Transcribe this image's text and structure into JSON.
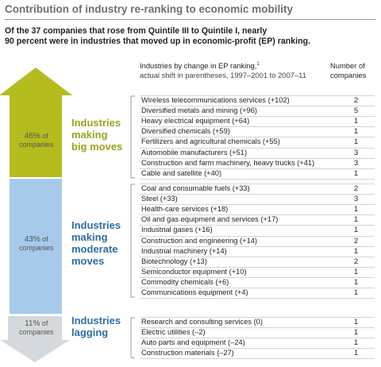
{
  "title": "Contribution of industry re-ranking to economic mobility",
  "subtitle": [
    "Of the 37 companies that rose from Quintile III to Quintile I, nearly",
    "90 percent were in industries that moved up in economic-profit (EP) ranking."
  ],
  "headers": {
    "industries": "Industries by change in EP ranking,",
    "footnote_mark": "1",
    "industries_note": "actual shift in parentheses, 1997–2001 to 2007–11",
    "count": [
      "Number of",
      "companies"
    ]
  },
  "groups": [
    {
      "share": "46%",
      "share_note": [
        "of",
        "companies"
      ],
      "label": [
        "Industries",
        "making",
        "big moves"
      ],
      "rows": [
        [
          "Wireless telecommunications services (+102)",
          2
        ],
        [
          "Diversified metals and mining (+96)",
          5
        ],
        [
          "Heavy electrical equipment (+64)",
          1
        ],
        [
          "Diversified chemicals (+59)",
          1
        ],
        [
          "Fertilizers and agricultural chemicals (+55)",
          1
        ],
        [
          "Automobile manufacturers (+51)",
          3
        ],
        [
          "Construction and farm machinery, heavy trucks (+41)",
          3
        ],
        [
          "Cable and satellite (+40)",
          1
        ]
      ]
    },
    {
      "share": "43%",
      "share_note": [
        "of",
        "companies"
      ],
      "label": [
        "Industries",
        "making",
        "moderate",
        "moves"
      ],
      "rows": [
        [
          "Coal and consumable fuels (+33)",
          2
        ],
        [
          "Steel (+33)",
          3
        ],
        [
          "Health-care services (+18)",
          1
        ],
        [
          "Oil and gas equipment and services (+17)",
          1
        ],
        [
          "Industrial gases (+16)",
          1
        ],
        [
          "Construction and engineering (+14)",
          2
        ],
        [
          "Industrial machinery (+14)",
          1
        ],
        [
          "Biotechnology (+13)",
          2
        ],
        [
          "Semiconductor equipment (+10)",
          1
        ],
        [
          "Commodity chemicals (+6)",
          1
        ],
        [
          "Communications equipment (+4)",
          1
        ]
      ]
    },
    {
      "share": "11%",
      "share_note": [
        "of",
        "companies"
      ],
      "label": [
        "Industries",
        "lagging"
      ],
      "rows": [
        [
          "Research and consulting services (0)",
          1
        ],
        [
          "Electric utilities (–2)",
          1
        ],
        [
          "Auto parts and equipment (–24)",
          1
        ],
        [
          "Construction materials (–27)",
          1
        ]
      ]
    }
  ]
}
